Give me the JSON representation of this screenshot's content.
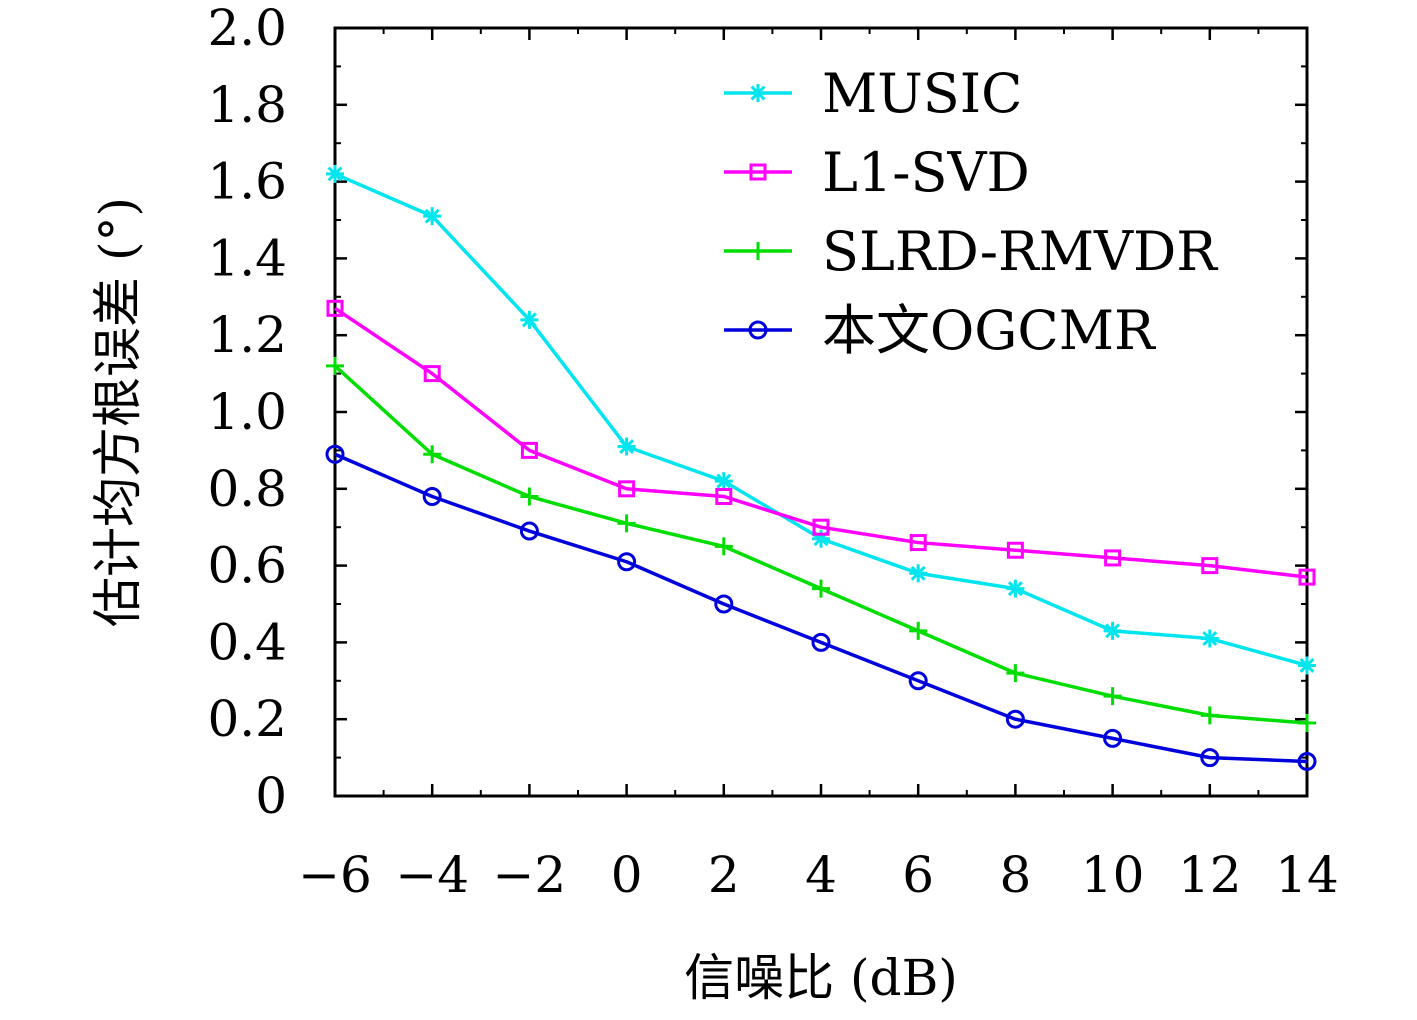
{
  "chart_data": {
    "type": "line",
    "title": "",
    "xlabel": "信噪比 (dB)",
    "ylabel": "估计均方根误差 (°)",
    "x": [
      -6,
      -4,
      -2,
      0,
      2,
      4,
      6,
      8,
      10,
      12,
      14
    ],
    "xlim": [
      -6,
      14
    ],
    "ylim": [
      0,
      2.0
    ],
    "xticks": [
      -6,
      -4,
      -2,
      0,
      2,
      4,
      6,
      8,
      10,
      12,
      14
    ],
    "xtick_labels": [
      "−6",
      "−4",
      "−2",
      "0",
      "2",
      "4",
      "6",
      "8",
      "10",
      "12",
      "14"
    ],
    "yticks": [
      0,
      0.2,
      0.4,
      0.6,
      0.8,
      1.0,
      1.2,
      1.4,
      1.6,
      1.8,
      2.0
    ],
    "ytick_labels": [
      "0",
      "0.2",
      "0.4",
      "0.6",
      "0.8",
      "1.0",
      "1.2",
      "1.4",
      "1.6",
      "1.8",
      "2.0"
    ],
    "grid": false,
    "legend_position": "top-right",
    "series": [
      {
        "name": "MUSIC",
        "color": "#00e5ee",
        "marker": "asterisk",
        "values": [
          1.62,
          1.51,
          1.24,
          0.91,
          0.82,
          0.67,
          0.58,
          0.54,
          0.43,
          0.41,
          0.34
        ]
      },
      {
        "name": "L1-SVD",
        "color": "#ff00ff",
        "marker": "square",
        "values": [
          1.27,
          1.1,
          0.9,
          0.8,
          0.78,
          0.7,
          0.66,
          0.64,
          0.62,
          0.6,
          0.57
        ]
      },
      {
        "name": "SLRD-RMVDR",
        "color": "#00dd00",
        "marker": "plus",
        "values": [
          1.12,
          0.89,
          0.78,
          0.71,
          0.65,
          0.54,
          0.43,
          0.32,
          0.26,
          0.21,
          0.19
        ]
      },
      {
        "name": "本文OGCMR",
        "color": "#0000dd",
        "marker": "circle",
        "values": [
          0.89,
          0.78,
          0.69,
          0.61,
          0.5,
          0.4,
          0.3,
          0.2,
          0.15,
          0.1,
          0.09
        ]
      }
    ]
  }
}
